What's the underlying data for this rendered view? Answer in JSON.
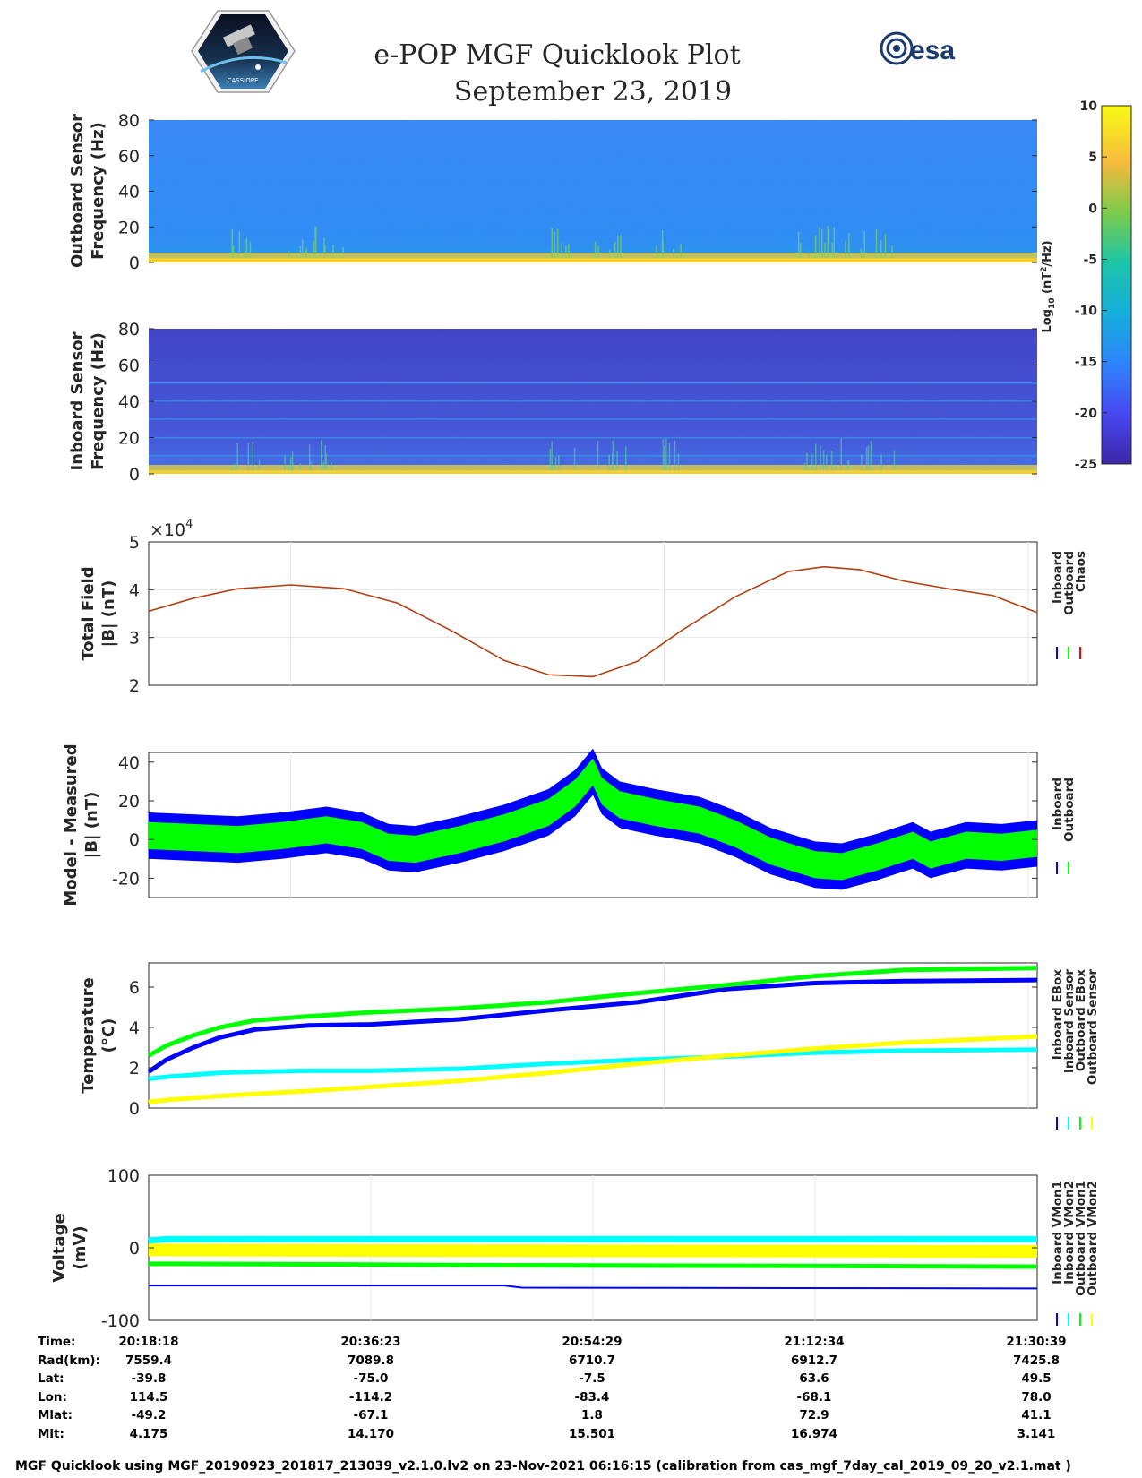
{
  "header": {
    "title_line1": "e-POP MGF Quicklook Plot",
    "title_line2": "September 23, 2019",
    "logo_left_text": "CASSIOPE",
    "logo_right_text": "esa"
  },
  "colors": {
    "blue": "#0000ff",
    "green": "#00ff00",
    "red": "#ff0000",
    "cyan": "#00ffff",
    "yellow": "#ffff00",
    "brown": "#b24010"
  },
  "chart_data": [
    {
      "id": "outboard-spectrogram",
      "type": "heatmap",
      "ylabel_line1": "Outboard Sensor",
      "ylabel_line2": "Frequency (Hz)",
      "ylim": [
        0,
        80
      ],
      "yticks": [
        "0",
        "20",
        "40",
        "60",
        "80"
      ]
    },
    {
      "id": "inboard-spectrogram",
      "type": "heatmap",
      "ylabel_line1": "Inboard Sensor",
      "ylabel_line2": "Frequency (Hz)",
      "ylim": [
        0,
        80
      ],
      "yticks": [
        "0",
        "20",
        "40",
        "60",
        "80"
      ]
    },
    {
      "id": "colorbar",
      "type": "heatmap",
      "label": "Log10 (nT2/Hz)",
      "clim": [
        -25,
        10
      ],
      "ticks": [
        "10",
        "5",
        "0",
        "-5",
        "-10",
        "-15",
        "-20",
        "-25"
      ]
    },
    {
      "id": "total-field",
      "type": "line",
      "ylabel_line1": "Total Field",
      "ylabel_line2": "|B| (nT)",
      "exponent": "×10",
      "exponent_power": "4",
      "ylim": [
        2,
        5
      ],
      "yticks": [
        "2",
        "3",
        "4",
        "5"
      ],
      "legend": [
        "Inboard",
        "Outboard",
        "Chaos"
      ],
      "x": [
        0.0,
        0.05,
        0.1,
        0.16,
        0.22,
        0.28,
        0.34,
        0.4,
        0.45,
        0.5,
        0.55,
        0.6,
        0.66,
        0.72,
        0.76,
        0.8,
        0.85,
        0.9,
        0.95,
        1.0
      ],
      "values": [
        3.55,
        3.82,
        4.02,
        4.1,
        4.02,
        3.72,
        3.15,
        2.52,
        2.22,
        2.18,
        2.5,
        3.15,
        3.85,
        4.38,
        4.48,
        4.42,
        4.18,
        4.02,
        3.88,
        3.52
      ]
    },
    {
      "id": "model-minus-measured",
      "type": "line",
      "ylabel_line1": "Model - Measured",
      "ylabel_line2": "|B| (nT)",
      "ylim": [
        -30,
        45
      ],
      "yticks": [
        "-20",
        "0",
        "20",
        "40"
      ],
      "legend": [
        "Inboard",
        "Outboard"
      ],
      "x": [
        0.0,
        0.05,
        0.1,
        0.15,
        0.2,
        0.24,
        0.27,
        0.3,
        0.35,
        0.4,
        0.45,
        0.48,
        0.5,
        0.51,
        0.53,
        0.57,
        0.62,
        0.66,
        0.7,
        0.75,
        0.78,
        0.82,
        0.86,
        0.88,
        0.92,
        0.96,
        1.0
      ],
      "center": [
        2,
        1,
        0,
        2,
        5,
        2,
        -4,
        -5,
        0,
        6,
        14,
        24,
        35,
        25,
        18,
        14,
        10,
        3,
        -6,
        -13,
        -14,
        -9,
        -3,
        -8,
        -3,
        -4,
        -2
      ],
      "outer_halfwidth": 12,
      "inner_halfwidth": 7
    },
    {
      "id": "temperature",
      "type": "line",
      "ylabel_line1": "Temperature",
      "ylabel_line2": "(°C)",
      "ylim": [
        0,
        7.2
      ],
      "yticks": [
        "0",
        "2",
        "4",
        "6"
      ],
      "legend": [
        "Inboard EBox",
        "Inboard Sensor",
        "Outboard EBox",
        "Outboard Sensor"
      ],
      "x": [
        0.0,
        0.02,
        0.05,
        0.08,
        0.12,
        0.18,
        0.25,
        0.35,
        0.45,
        0.55,
        0.65,
        0.75,
        0.85,
        1.0
      ],
      "series": [
        {
          "name": "Inboard EBox",
          "color": "blue",
          "values": [
            1.8,
            2.4,
            3.0,
            3.5,
            3.9,
            4.1,
            4.15,
            4.4,
            4.85,
            5.25,
            5.9,
            6.2,
            6.3,
            6.35
          ]
        },
        {
          "name": "Inboard Sensor",
          "color": "green",
          "values": [
            2.6,
            3.1,
            3.6,
            4.0,
            4.35,
            4.55,
            4.75,
            4.95,
            5.25,
            5.7,
            6.1,
            6.55,
            6.85,
            6.95
          ]
        },
        {
          "name": "Outboard EBox",
          "color": "cyan",
          "values": [
            1.45,
            1.55,
            1.65,
            1.75,
            1.8,
            1.85,
            1.85,
            1.95,
            2.2,
            2.4,
            2.55,
            2.75,
            2.85,
            2.9
          ]
        },
        {
          "name": "Outboard Sensor",
          "color": "yellow",
          "values": [
            0.3,
            0.4,
            0.5,
            0.6,
            0.7,
            0.85,
            1.05,
            1.35,
            1.75,
            2.2,
            2.6,
            2.95,
            3.25,
            3.55
          ]
        }
      ]
    },
    {
      "id": "voltage",
      "type": "line",
      "ylabel_line1": "Voltage",
      "ylabel_line2": "(mV)",
      "ylim": [
        -100,
        100
      ],
      "yticks": [
        "-100",
        "0",
        "100"
      ],
      "legend": [
        "Inboard VMon1",
        "Inboard VMon2",
        "Outboard VMon1",
        "Outboard VMon2"
      ],
      "x": [
        0.0,
        0.02,
        0.4,
        0.42,
        1.0
      ],
      "series": [
        {
          "name": "Inboard VMon1",
          "color": "blue",
          "values": [
            -52,
            -52,
            -52,
            -55,
            -56
          ]
        },
        {
          "name": "Inboard VMon2",
          "color": "cyan",
          "values": [
            10,
            12,
            12,
            12,
            12
          ]
        },
        {
          "name": "Outboard VMon1",
          "color": "green",
          "values": [
            -22,
            -22,
            -24,
            -24,
            -26
          ]
        },
        {
          "name": "Outboard VMon2",
          "color": "yellow",
          "values": [
            -3,
            -3,
            -4,
            -4,
            -5
          ]
        }
      ]
    }
  ],
  "orbit_table": {
    "row_labels": [
      "Time:",
      "Rad(km):",
      "Lat:",
      "Lon:",
      "Mlat:",
      "Mlt:"
    ],
    "columns": [
      {
        "time": "20:18:18",
        "rad": "7559.4",
        "lat": "-39.8",
        "lon": "114.5",
        "mlat": "-49.2",
        "mlt": "4.175"
      },
      {
        "time": "20:36:23",
        "rad": "7089.8",
        "lat": "-75.0",
        "lon": "-114.2",
        "mlat": "-67.1",
        "mlt": "14.170"
      },
      {
        "time": "20:54:29",
        "rad": "6710.7",
        "lat": "-7.5",
        "lon": "-83.4",
        "mlat": "1.8",
        "mlt": "15.501"
      },
      {
        "time": "21:12:34",
        "rad": "6912.7",
        "lat": "63.6",
        "lon": "-68.1",
        "mlat": "72.9",
        "mlt": "16.974"
      },
      {
        "time": "21:30:39",
        "rad": "7425.8",
        "lat": "49.5",
        "lon": "78.0",
        "mlat": "41.1",
        "mlt": "3.141"
      }
    ]
  },
  "footer": {
    "text": "MGF Quicklook using MGF_20190923_201817_213039_v2.1.0.lv2 on 23-Nov-2021 06:16:15 (calibration from cas_mgf_7day_cal_2019_09_20_v2.1.mat )"
  }
}
